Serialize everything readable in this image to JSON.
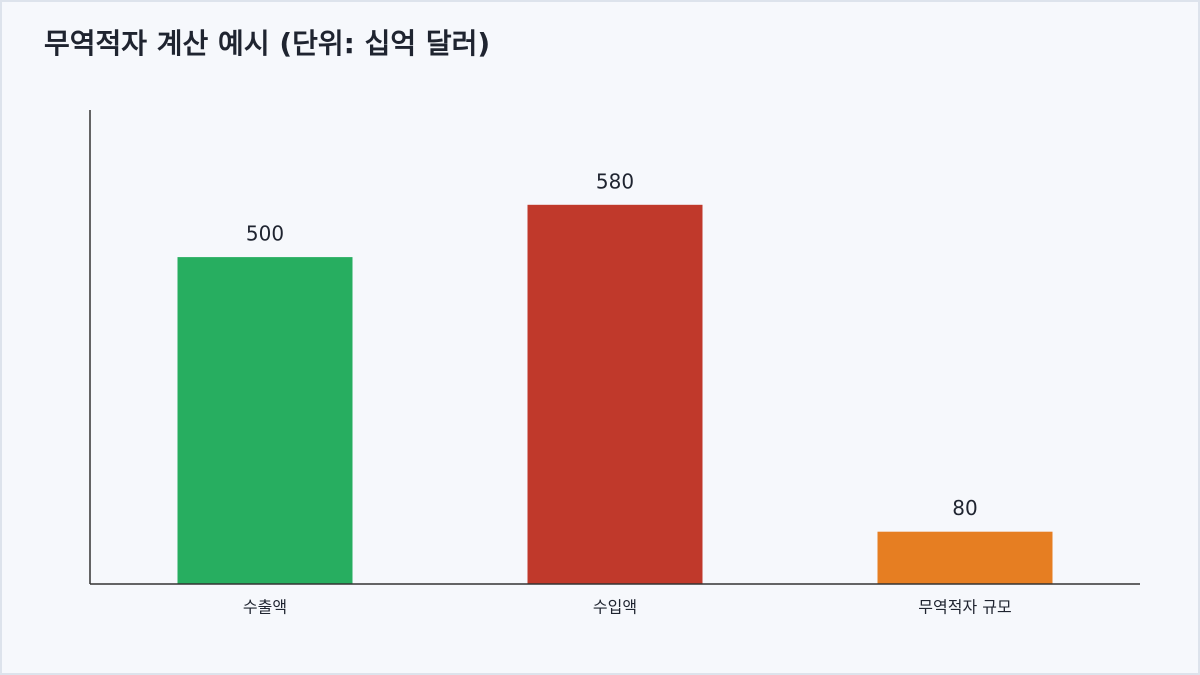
{
  "chart_data": {
    "type": "bar",
    "title": "무역적자 계산 예시 (단위: 십억 달러)",
    "categories": [
      "수출액",
      "수입액",
      "무역적자 규모"
    ],
    "values": [
      500,
      580,
      80
    ],
    "colors": [
      "#27ae60",
      "#c0392b",
      "#e67e22"
    ],
    "ylim": [
      0,
      725
    ]
  }
}
